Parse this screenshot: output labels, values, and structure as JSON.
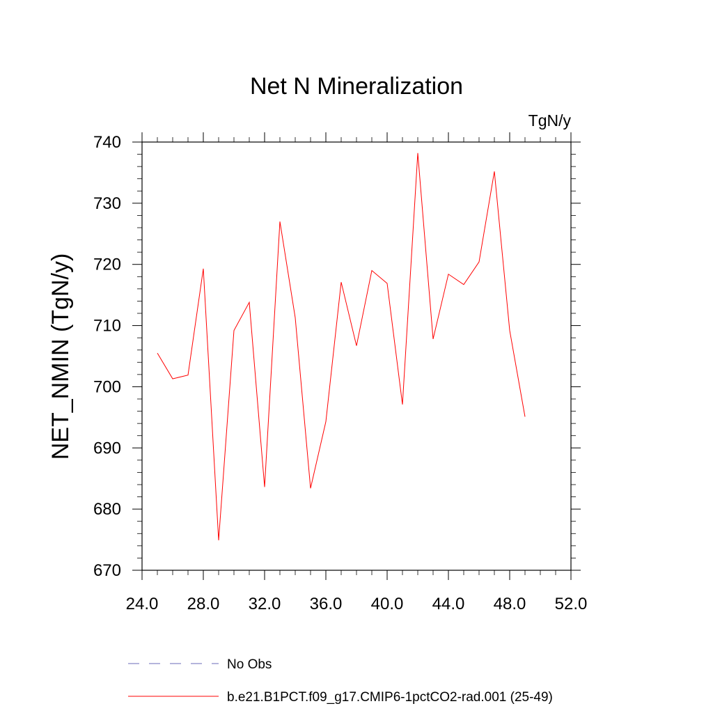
{
  "chart_data": {
    "type": "line",
    "title": "Net N Mineralization",
    "units": "TgN/y",
    "xlabel": "",
    "ylabel": "NET_NMIN  (TgN/y)",
    "xlim": [
      24,
      52
    ],
    "ylim": [
      670,
      740
    ],
    "xticks": [
      24,
      28,
      32,
      36,
      40,
      44,
      48,
      52
    ],
    "xtick_labels": [
      "24.0",
      "28.0",
      "32.0",
      "36.0",
      "40.0",
      "44.0",
      "48.0",
      "52.0"
    ],
    "yticks": [
      670,
      680,
      690,
      700,
      710,
      720,
      730,
      740
    ],
    "ytick_labels": [
      "670",
      "680",
      "690",
      "700",
      "710",
      "720",
      "730",
      "740"
    ],
    "grid": false,
    "legend_position": "bottom",
    "series": [
      {
        "name": "b.e21.B1PCT.f09_g17.CMIP6-1pctCO2-rad.001 (25-49)",
        "color": "#ff0000",
        "style": "solid",
        "x": [
          25,
          26,
          27,
          28,
          29,
          30,
          31,
          32,
          33,
          34,
          35,
          36,
          37,
          38,
          39,
          40,
          41,
          42,
          43,
          44,
          45,
          46,
          47,
          48,
          49
        ],
        "y": [
          705.5,
          701.3,
          701.9,
          719.3,
          674.9,
          709.2,
          713.8,
          683.6,
          727.0,
          711.3,
          683.4,
          694.3,
          717.1,
          706.7,
          719.0,
          716.9,
          697.1,
          738.2,
          707.8,
          718.4,
          716.7,
          720.4,
          735.2,
          709.2,
          695.1
        ]
      }
    ],
    "legend": [
      {
        "label": "No Obs",
        "color": "#6a6ab8",
        "style": "dashed"
      },
      {
        "label": "b.e21.B1PCT.f09_g17.CMIP6-1pctCO2-rad.001 (25-49)",
        "color": "#ff0000",
        "style": "solid"
      }
    ]
  }
}
